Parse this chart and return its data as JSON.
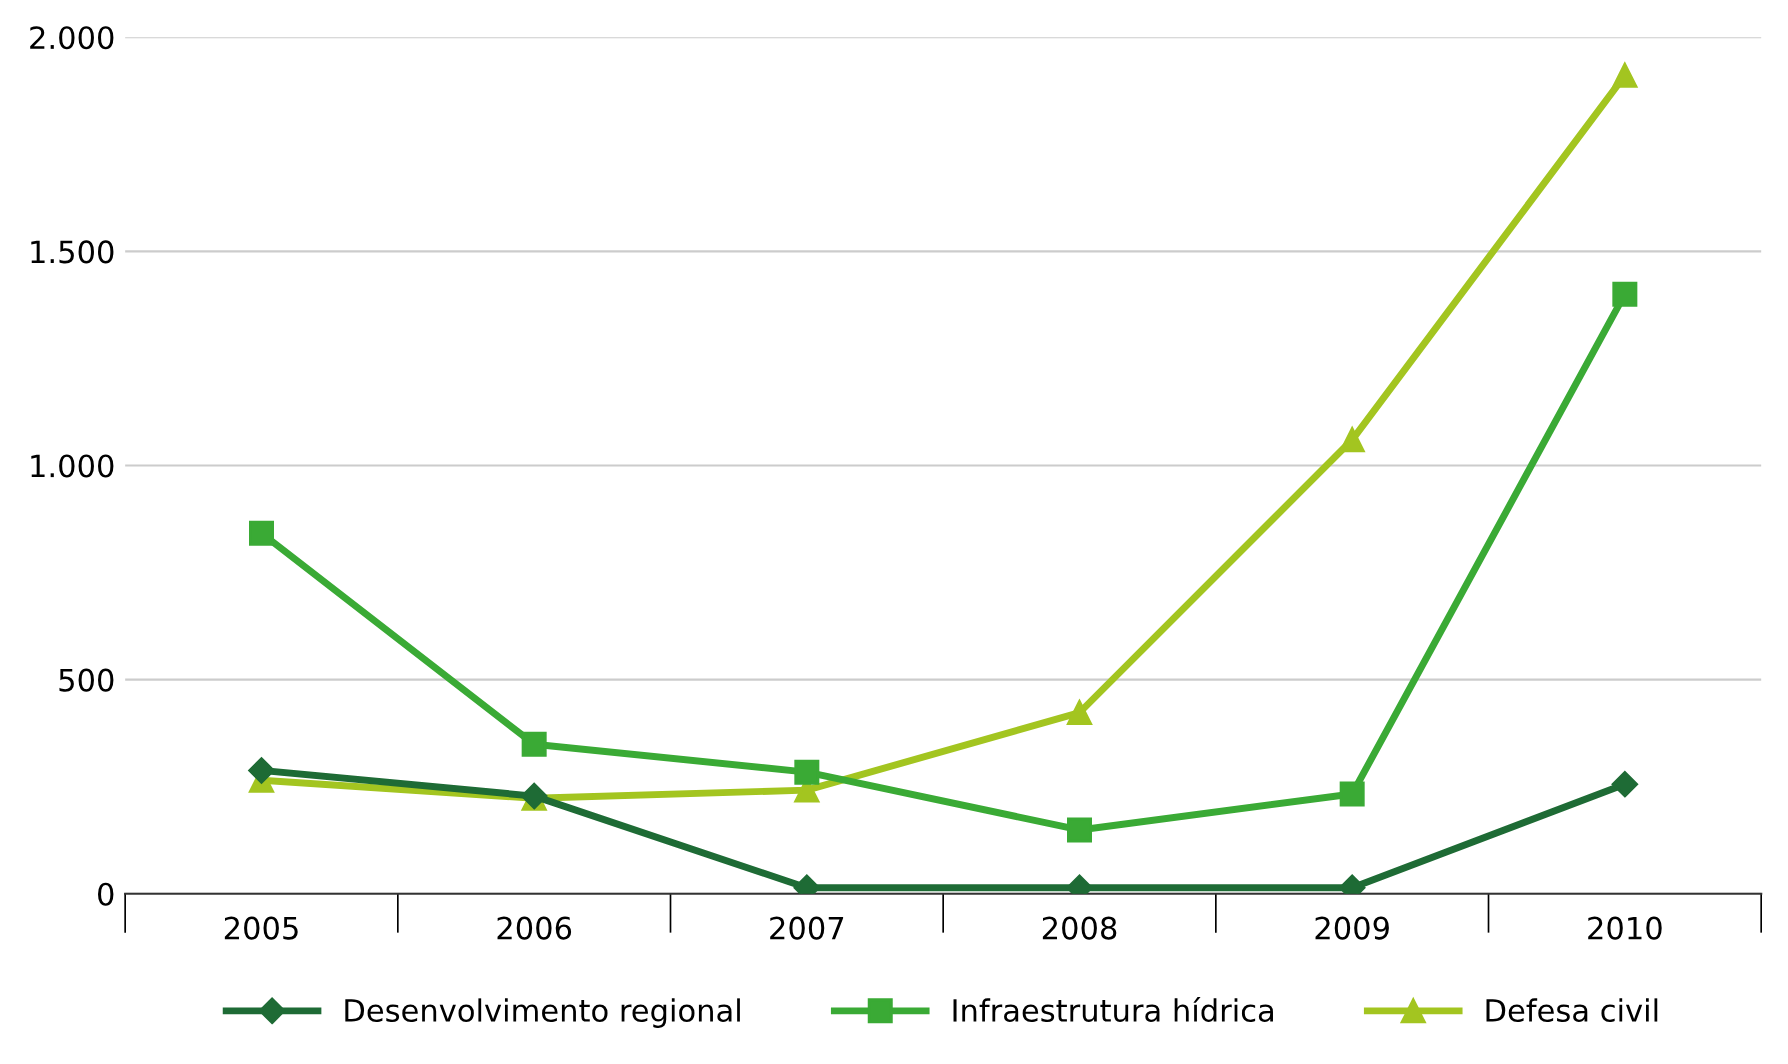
{
  "chart_data": {
    "type": "line",
    "categories": [
      "2005",
      "2006",
      "2007",
      "2008",
      "2009",
      "2010"
    ],
    "series": [
      {
        "name": "Desenvolvimento regional",
        "color": "#1e6b35",
        "marker": "diamond",
        "values": [
          288,
          228,
          14,
          14,
          14,
          256
        ]
      },
      {
        "name": "Infraestrutura hídrica",
        "color": "#3aaa35",
        "marker": "square",
        "values": [
          842,
          349,
          284,
          149,
          233,
          1400
        ]
      },
      {
        "name": "Defesa civil",
        "color": "#a3c520",
        "marker": "triangle",
        "values": [
          265,
          223,
          242,
          423,
          1060,
          1911
        ]
      }
    ],
    "ylim": [
      0,
      2000
    ],
    "yticks": [
      0,
      500,
      {
        "value": 1000,
        "label": "1.000"
      },
      {
        "value": 1500,
        "label": "1.500"
      },
      {
        "value": 2000,
        "label": "2.000"
      }
    ],
    "grid": "y",
    "legend": "bottom",
    "line_style": "solid"
  }
}
